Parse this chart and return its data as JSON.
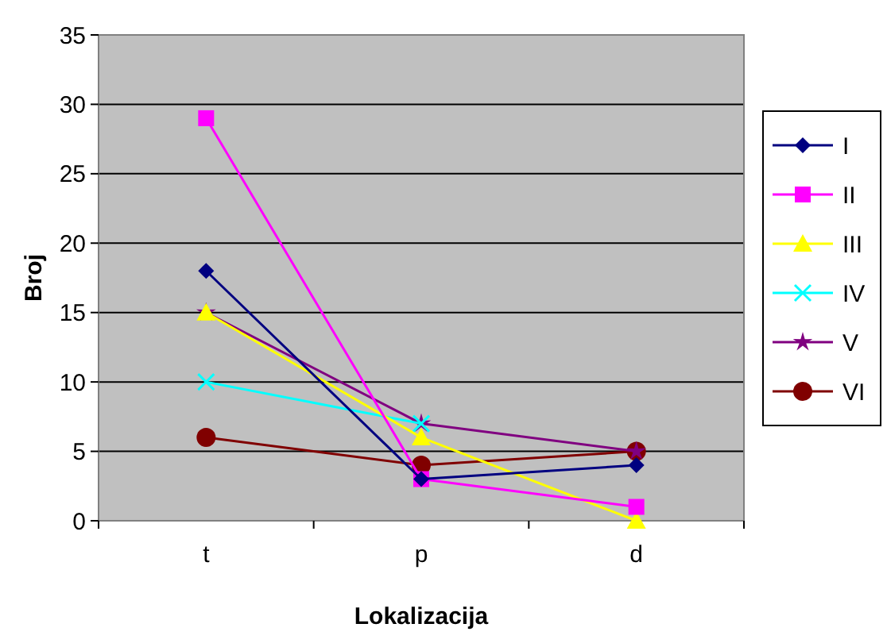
{
  "chart_data": {
    "type": "line",
    "xlabel": "Lokalizacija",
    "ylabel": "Broj",
    "categories": [
      "t",
      "p",
      "d"
    ],
    "ylim": [
      0,
      35
    ],
    "yticks": [
      0,
      5,
      10,
      15,
      20,
      25,
      30,
      35
    ],
    "grid": "y",
    "legend": "right",
    "series": [
      {
        "name": "I",
        "color": "#000080",
        "marker": "diamond",
        "values": [
          18,
          3,
          4
        ]
      },
      {
        "name": "II",
        "color": "#ff00ff",
        "marker": "square",
        "values": [
          29,
          3,
          1
        ]
      },
      {
        "name": "III",
        "color": "#ffff00",
        "marker": "triangle",
        "values": [
          15,
          6,
          0
        ]
      },
      {
        "name": "IV",
        "color": "#00ffff",
        "marker": "cross",
        "values": [
          10,
          7,
          null
        ]
      },
      {
        "name": "V",
        "color": "#800080",
        "marker": "star",
        "values": [
          15,
          7,
          5
        ]
      },
      {
        "name": "VI",
        "color": "#800000",
        "marker": "circle",
        "values": [
          6,
          4,
          5
        ]
      }
    ]
  }
}
